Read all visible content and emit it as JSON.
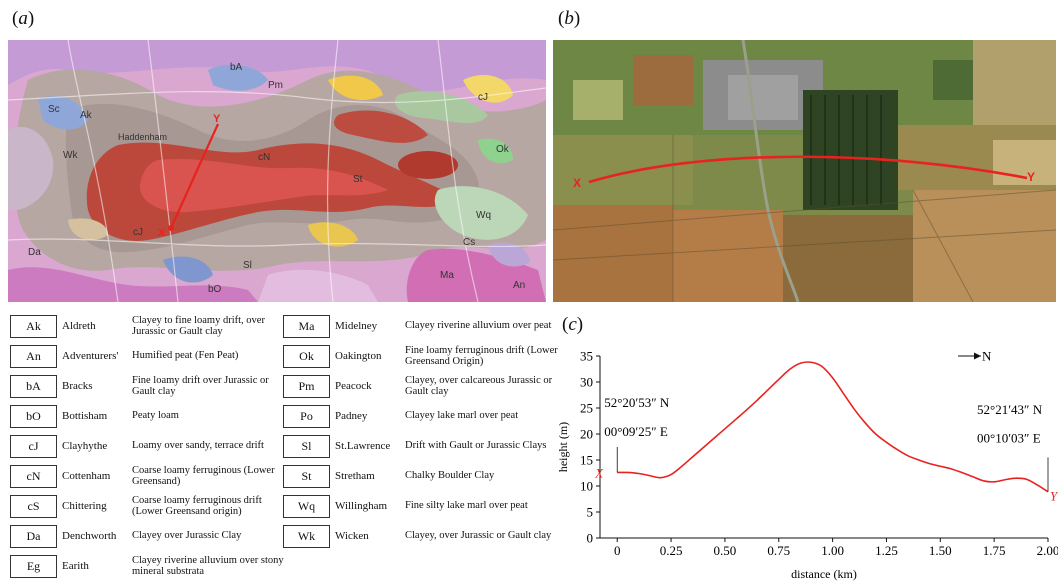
{
  "panels": {
    "a": "a",
    "b": "b",
    "c": "c"
  },
  "map_a": {
    "soil_codes": [
      "Ak",
      "Wk",
      "Pm",
      "bA",
      "cN",
      "St",
      "Sc",
      "cJ",
      "Ok",
      "Wq",
      "Sl",
      "An",
      "Ma",
      "Cs",
      "bO",
      "cJ",
      "Da"
    ],
    "place_text": "Haddenham",
    "points": {
      "x": "X",
      "y": "Y"
    }
  },
  "photo_b": {
    "points": {
      "x": "X",
      "y": "Y"
    }
  },
  "legend": [
    {
      "code": "Ak",
      "name": "Aldreth",
      "desc": "Clayey to fine loamy drift, over Jurassic or Gault clay"
    },
    {
      "code": "An",
      "name": "Adventurers'",
      "desc": "Humified peat (Fen Peat)"
    },
    {
      "code": "bA",
      "name": "Bracks",
      "desc": "Fine loamy drift over Jurassic or Gault clay"
    },
    {
      "code": "bO",
      "name": "Bottisham",
      "desc": "Peaty loam"
    },
    {
      "code": "cJ",
      "name": "Clayhythe",
      "desc": "Loamy over sandy, terrace drift"
    },
    {
      "code": "cN",
      "name": "Cottenham",
      "desc": "Coarse loamy ferruginous (Lower Greensand)"
    },
    {
      "code": "cS",
      "name": "Chittering",
      "desc": "Coarse loamy ferruginous drift (Lower Greensand origin)"
    },
    {
      "code": "Da",
      "name": "Denchworth",
      "desc": "Clayey over Jurassic Clay"
    },
    {
      "code": "Eg",
      "name": "Earith",
      "desc": "Clayey riverine alluvium over stony mineral substrata"
    },
    {
      "code": "Ma",
      "name": "Midelney",
      "desc": "Clayey riverine alluvium over peat"
    },
    {
      "code": "Ok",
      "name": "Oakington",
      "desc": "Fine loamy ferruginous drift (Lower Greensand Origin)"
    },
    {
      "code": "Pm",
      "name": "Peacock",
      "desc": "Clayey, over calcareous Jurassic or Gault clay"
    },
    {
      "code": "Po",
      "name": "Padney",
      "desc": "Clayey lake marl over peat"
    },
    {
      "code": "Sl",
      "name": "St.Lawrence",
      "desc": "Drift with Gault or Jurassic Clays"
    },
    {
      "code": "St",
      "name": "Stretham",
      "desc": "Chalky Boulder Clay"
    },
    {
      "code": "Wq",
      "name": "Willingham",
      "desc": "Fine silty lake marl over peat"
    },
    {
      "code": "Wk",
      "name": "Wicken",
      "desc": "Clayey, over Jurassic or Gault clay"
    }
  ],
  "chart_data": {
    "type": "line",
    "xlabel": "distance (km)",
    "ylabel": "height (m)",
    "xlim": [
      -0.08,
      2.0
    ],
    "ylim": [
      0,
      35
    ],
    "xticks": [
      "0",
      "0.25",
      "0.50",
      "0.75",
      "1.00",
      "1.25",
      "1.50",
      "1.75",
      "2.00"
    ],
    "yticks": [
      "0",
      "5",
      "10",
      "15",
      "20",
      "25",
      "30",
      "35"
    ],
    "series": [
      {
        "color": "#e8231f",
        "x": [
          0,
          0.05,
          0.1,
          0.15,
          0.2,
          0.25,
          0.3,
          0.35,
          0.4,
          0.45,
          0.5,
          0.55,
          0.6,
          0.65,
          0.7,
          0.75,
          0.8,
          0.85,
          0.9,
          0.95,
          1.0,
          1.05,
          1.1,
          1.15,
          1.2,
          1.25,
          1.3,
          1.35,
          1.4,
          1.45,
          1.5,
          1.55,
          1.6,
          1.65,
          1.7,
          1.75,
          1.8,
          1.85,
          1.9,
          1.95,
          2.0
        ],
        "y": [
          12.6,
          12.6,
          12.4,
          12.0,
          11.6,
          12.2,
          13.8,
          15.6,
          17.4,
          19.2,
          21.0,
          22.8,
          24.6,
          26.5,
          28.5,
          30.5,
          32.4,
          33.6,
          33.8,
          33.0,
          30.8,
          27.8,
          24.8,
          22.2,
          20.0,
          18.4,
          17.0,
          15.8,
          15.0,
          14.3,
          13.8,
          13.3,
          12.6,
          11.8,
          11.0,
          10.8,
          11.2,
          11.5,
          11.3,
          10.2,
          8.9
        ]
      }
    ],
    "annotations": {
      "left_coord_1": "52°20′53″ N",
      "left_coord_2": "00°09′25″ E",
      "right_coord_1": "52°21′43″ N",
      "right_coord_2": "00°10′03″ E",
      "x_label": "X",
      "y_label": "Y",
      "north_label": "N"
    }
  }
}
